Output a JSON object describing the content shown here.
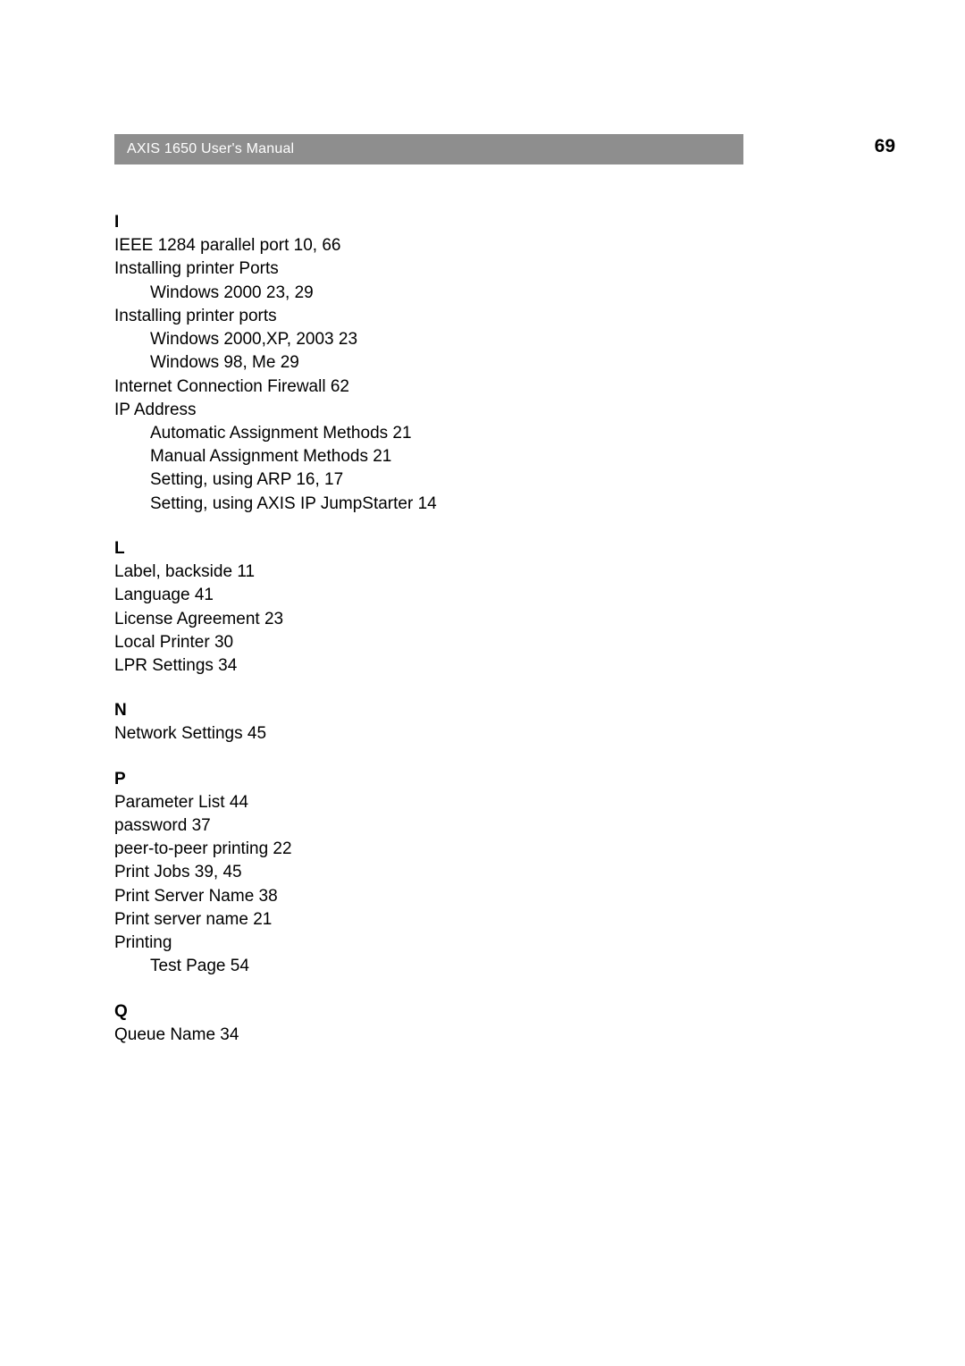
{
  "header": {
    "title": "AXIS 1650 User's Manual",
    "bar_bg": "#8e8e8e",
    "bar_text_color": "#ffffff"
  },
  "page_number": "69",
  "index": {
    "I": {
      "letter": "I",
      "lines": [
        {
          "text": "IEEE 1284 parallel port 10, 66",
          "sub": false
        },
        {
          "text": "Installing printer Ports",
          "sub": false
        },
        {
          "text": "Windows 2000 23, 29",
          "sub": true
        },
        {
          "text": "Installing printer ports",
          "sub": false
        },
        {
          "text": "Windows 2000,XP, 2003 23",
          "sub": true
        },
        {
          "text": "Windows 98, Me 29",
          "sub": true
        },
        {
          "text": "Internet Connection Firewall 62",
          "sub": false
        },
        {
          "text": "IP Address",
          "sub": false
        },
        {
          "text": "Automatic Assignment Methods 21",
          "sub": true
        },
        {
          "text": "Manual Assignment Methods 21",
          "sub": true
        },
        {
          "text": "Setting, using ARP 16, 17",
          "sub": true
        },
        {
          "text": "Setting, using AXIS IP JumpStarter 14",
          "sub": true
        }
      ]
    },
    "L": {
      "letter": "L",
      "lines": [
        {
          "text": "Label, backside 11",
          "sub": false
        },
        {
          "text": "Language 41",
          "sub": false
        },
        {
          "text": "License Agreement 23",
          "sub": false
        },
        {
          "text": "Local Printer 30",
          "sub": false
        },
        {
          "text": "LPR Settings 34",
          "sub": false
        }
      ]
    },
    "N": {
      "letter": "N",
      "lines": [
        {
          "text": "Network Settings 45",
          "sub": false
        }
      ]
    },
    "P": {
      "letter": "P",
      "lines": [
        {
          "text": "Parameter List 44",
          "sub": false
        },
        {
          "text": "password 37",
          "sub": false
        },
        {
          "text": "peer-to-peer printing 22",
          "sub": false
        },
        {
          "text": "Print Jobs 39, 45",
          "sub": false
        },
        {
          "text": "Print Server Name 38",
          "sub": false
        },
        {
          "text": "Print server name 21",
          "sub": false
        },
        {
          "text": "Printing",
          "sub": false
        },
        {
          "text": "Test Page 54",
          "sub": true
        }
      ]
    },
    "Q": {
      "letter": "Q",
      "lines": [
        {
          "text": "Queue Name 34",
          "sub": false
        }
      ]
    }
  }
}
